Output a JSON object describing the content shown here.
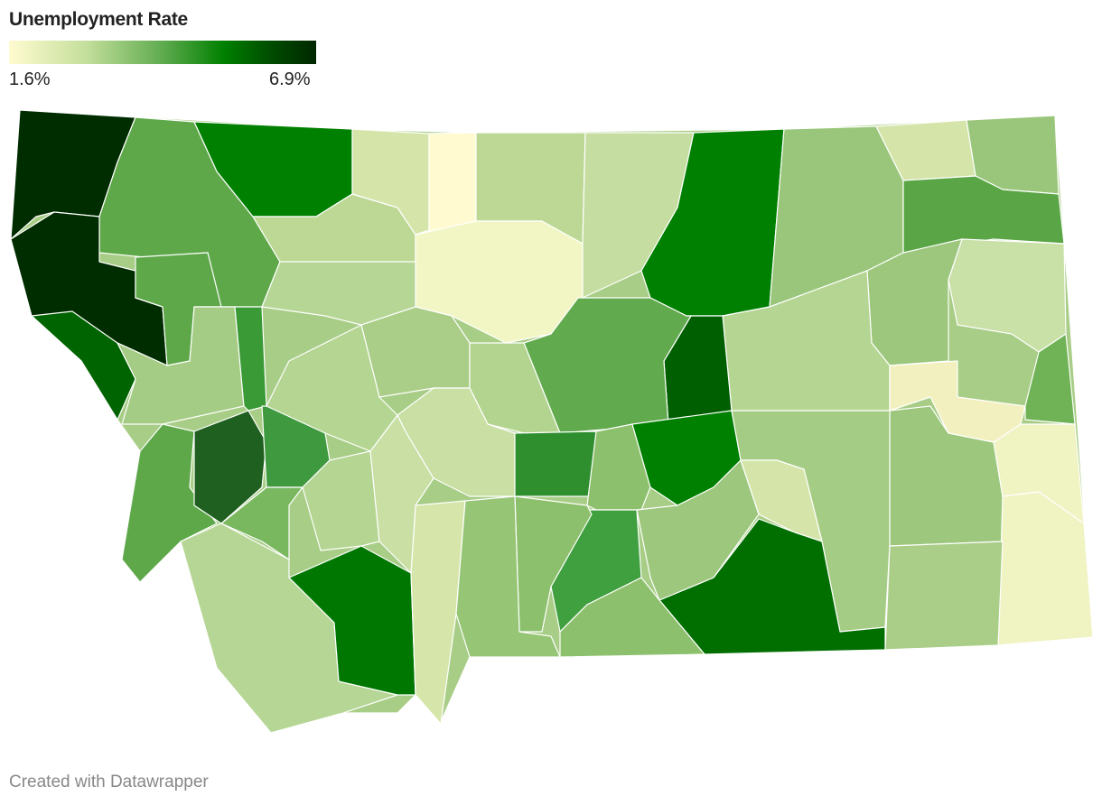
{
  "legend": {
    "title": "Unemployment Rate",
    "min_label": "1.6%",
    "max_label": "6.9%"
  },
  "footer": "Created with Datawrapper"
}
